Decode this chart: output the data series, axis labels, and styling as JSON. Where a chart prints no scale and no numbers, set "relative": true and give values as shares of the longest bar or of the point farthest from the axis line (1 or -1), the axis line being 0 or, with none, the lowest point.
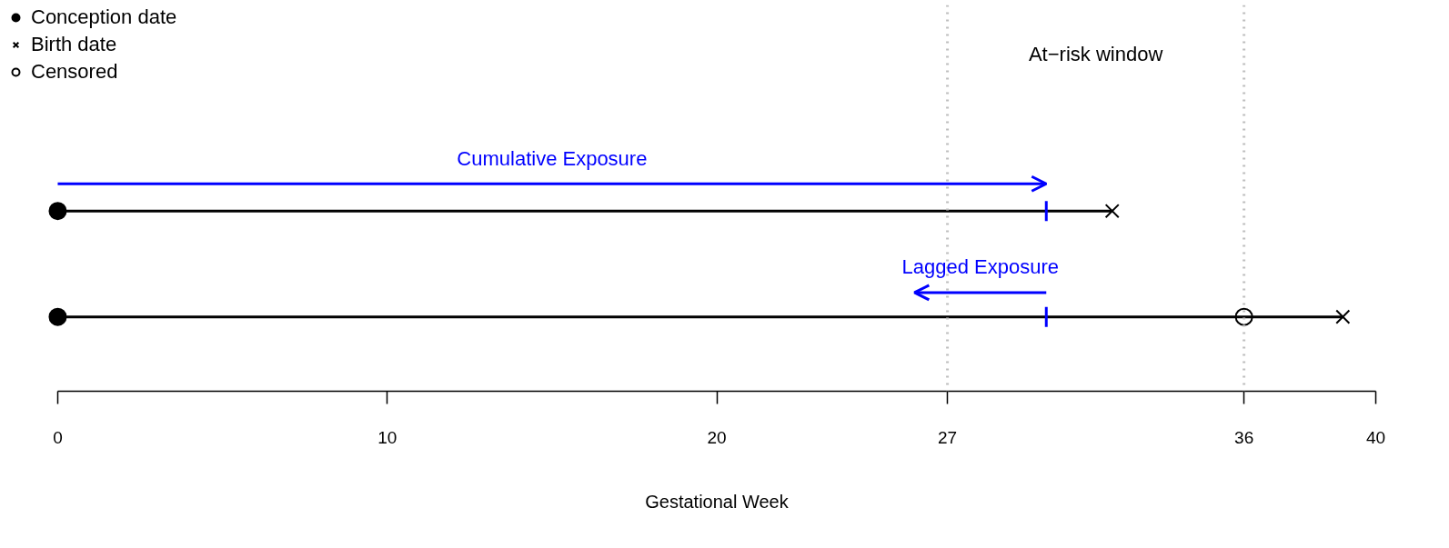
{
  "chart_data": {
    "type": "line",
    "xlabel": "Gestational Week",
    "relative": true,
    "xlim": [
      0,
      40
    ],
    "xticks": [
      0,
      10,
      20,
      27,
      36,
      40
    ],
    "tick_labels": "x",
    "grid": false,
    "legend": "top left",
    "series": [
      {
        "color": "#000000",
        "x": [
          0,
          32
        ],
        "values": [
          0.81,
          0.81
        ]
      },
      {
        "color": "#000000",
        "x": [
          0,
          39
        ],
        "values": [
          0.07,
          0.07
        ]
      },
      {
        "color": "#0000ff",
        "x": [
          30,
          30
        ],
        "values": [
          0.74,
          0.88
        ]
      },
      {
        "color": "#0000ff",
        "x": [
          30,
          30
        ],
        "values": [
          0,
          0.14
        ]
      },
      {
        "name": "Cumulative Exposure",
        "color": "#0000ff",
        "x": [
          0,
          30
        ],
        "values": [
          1,
          1
        ]
      },
      {
        "name": "Lagged Exposure",
        "color": "#0000ff",
        "x": [
          30,
          26
        ],
        "values": [
          0.24,
          0.24
        ]
      },
      {
        "type": "scatter",
        "name": "Conception date",
        "marker": "circle",
        "color": "#000000",
        "x": [
          0,
          0
        ],
        "values": [
          0.81,
          0.07
        ]
      },
      {
        "type": "scatter",
        "name": "Birth date",
        "marker": "cross",
        "color": "#000000",
        "x": [
          32,
          39
        ],
        "values": [
          0.81,
          0.07
        ]
      },
      {
        "type": "scatter",
        "name": "Censored",
        "marker": "circle_open",
        "color": "#000000",
        "x": [
          36
        ],
        "values": [
          0.07
        ]
      }
    ],
    "ref_lines": [
      {
        "axis": "x",
        "value": 27,
        "label": null,
        "color": "#bebebe",
        "line_style": "dotted"
      },
      {
        "axis": "x",
        "value": 36,
        "label": null,
        "color": "#bebebe",
        "line_style": "dotted"
      }
    ],
    "annotations": [
      "At−risk window"
    ]
  }
}
